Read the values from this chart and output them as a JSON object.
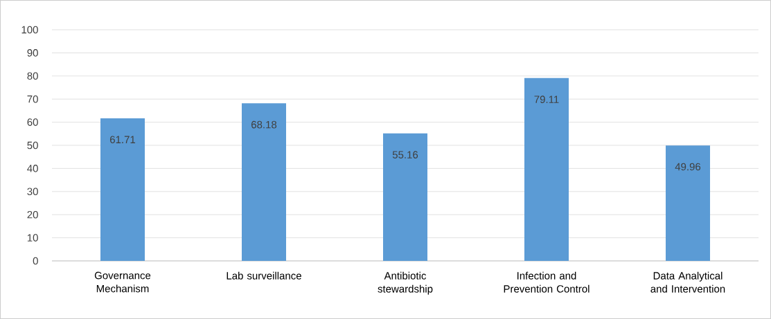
{
  "chart_data": {
    "type": "bar",
    "categories": [
      "Governance Mechanism",
      "Lab surveillance",
      "Antibiotic stewardship",
      "Infection and Prevention Control",
      "Data Analytical and Intervention"
    ],
    "values": [
      61.71,
      68.18,
      55.16,
      79.11,
      49.96
    ],
    "color": "#5b9bd5",
    "ylim": [
      0,
      100
    ],
    "yticks": [
      0,
      10,
      20,
      30,
      40,
      50,
      60,
      70,
      80,
      90,
      100
    ],
    "grid": "y",
    "data_labels": true
  }
}
